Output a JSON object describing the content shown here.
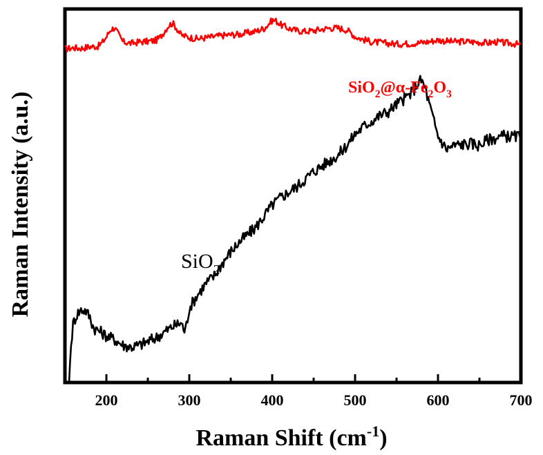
{
  "chart_data": {
    "type": "line",
    "xlabel": "Raman Shift (cm",
    "xlabel_sup": "-1",
    "xlabel_tail": ")",
    "ylabel": "Raman Intensity (a.u.)",
    "xlim": [
      150,
      700
    ],
    "ylim": [
      0,
      100
    ],
    "x_ticks": [
      200,
      300,
      400,
      500,
      600,
      700
    ],
    "x_minor_ticks": [
      250,
      350,
      450,
      550,
      650
    ],
    "y_ticks_shown": false,
    "legend": "none",
    "grid": false,
    "series": [
      {
        "name": "SiO2@α-Fe2O3",
        "label_parts": [
          {
            "t": "SiO",
            "s": "normal"
          },
          {
            "t": "2",
            "s": "sub"
          },
          {
            "t": "@α-Fe",
            "s": "normal"
          },
          {
            "t": "2",
            "s": "sub"
          },
          {
            "t": "O",
            "s": "normal"
          },
          {
            "t": "3",
            "s": "sub"
          }
        ],
        "color": "#ff0000",
        "x": [
          150,
          160,
          170,
          180,
          190,
          195,
          200,
          205,
          210,
          215,
          220,
          230,
          240,
          250,
          260,
          265,
          270,
          275,
          280,
          285,
          290,
          300,
          310,
          320,
          330,
          340,
          350,
          360,
          370,
          380,
          390,
          395,
          400,
          405,
          410,
          420,
          430,
          440,
          450,
          460,
          470,
          480,
          490,
          495,
          500,
          510,
          520,
          530,
          540,
          550,
          560,
          570,
          580,
          590,
          600,
          610,
          620,
          630,
          640,
          650,
          660,
          670,
          680,
          690,
          700
        ],
        "y": [
          89.3,
          89.6,
          89.5,
          89.9,
          90.0,
          91.0,
          92.5,
          94.5,
          95.0,
          93.0,
          91.2,
          90.8,
          91.2,
          91.3,
          91.6,
          92.5,
          94.0,
          95.6,
          96.2,
          94.8,
          93.0,
          92.4,
          92.0,
          92.3,
          92.6,
          92.9,
          93.1,
          93.2,
          93.6,
          94.0,
          94.8,
          95.8,
          97.0,
          96.8,
          95.8,
          94.8,
          94.2,
          94.0,
          94.2,
          94.6,
          94.9,
          94.9,
          94.4,
          93.6,
          92.6,
          91.8,
          91.2,
          91.0,
          90.8,
          90.6,
          90.7,
          90.8,
          91.0,
          91.3,
          91.7,
          91.4,
          91.2,
          91.3,
          91.2,
          91.1,
          90.9,
          91.2,
          90.9,
          90.8,
          90.3
        ]
      },
      {
        "name": "SiO2",
        "label_parts": [
          {
            "t": "SiO",
            "s": "normal"
          },
          {
            "t": "2",
            "s": "sub"
          }
        ],
        "color": "#000000",
        "x": [
          155,
          157,
          160,
          165,
          170,
          175,
          180,
          185,
          190,
          200,
          210,
          220,
          230,
          240,
          250,
          260,
          270,
          280,
          290,
          295,
          300,
          310,
          320,
          330,
          340,
          350,
          360,
          370,
          380,
          390,
          400,
          410,
          420,
          430,
          440,
          450,
          460,
          470,
          480,
          490,
          500,
          510,
          520,
          530,
          540,
          550,
          560,
          570,
          575,
          580,
          585,
          590,
          600,
          610,
          620,
          630,
          640,
          650,
          660,
          670,
          680,
          690,
          700
        ],
        "y": [
          0,
          9,
          16,
          18.5,
          19.5,
          19.3,
          17.5,
          14.5,
          14.0,
          12.5,
          11.5,
          10.0,
          9.5,
          10.0,
          11.0,
          12.0,
          13.5,
          15.0,
          16.0,
          13.5,
          20.0,
          23.5,
          26.5,
          28.5,
          32.0,
          35.0,
          37.5,
          39.5,
          41.5,
          44.5,
          47.5,
          49.5,
          51.0,
          52.5,
          54.5,
          56.5,
          58.0,
          59.5,
          61.0,
          63.5,
          66.5,
          68.5,
          70.0,
          71.5,
          72.5,
          74.5,
          76.0,
          78.0,
          80.0,
          81.0,
          78.5,
          74.0,
          66.0,
          62.5,
          63.5,
          63.8,
          64.0,
          63.5,
          65.0,
          65.5,
          66.0,
          65.8,
          66.0
        ]
      }
    ]
  }
}
